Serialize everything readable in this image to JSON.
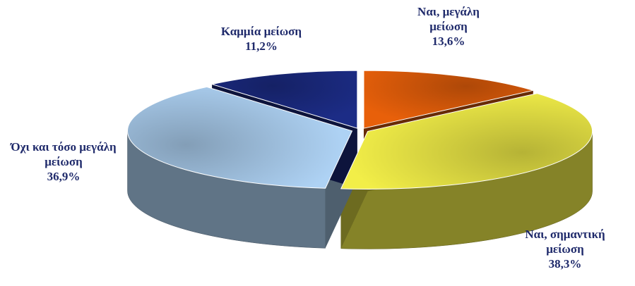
{
  "chart_data": {
    "type": "pie",
    "categories": [
      "Ναι, μεγάλη μείωση",
      "Ναι, σημαντική μείωση",
      "Όχι και τόσο μεγάλη μείωση",
      "Καμμία μείωση"
    ],
    "values": [
      13.6,
      38.3,
      36.9,
      11.2
    ],
    "value_labels": [
      "13,6%",
      "38,3%",
      "36,9%",
      "11,2%"
    ],
    "colors": [
      "#e8600a",
      "#f2ee48",
      "#aed2f4",
      "#1c2c86"
    ]
  }
}
